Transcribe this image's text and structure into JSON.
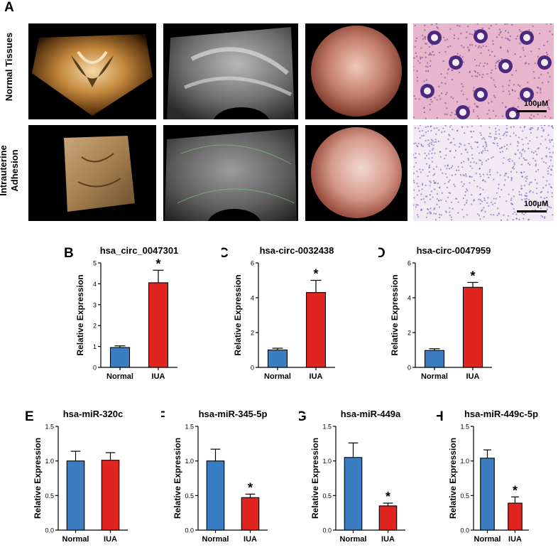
{
  "panel_a": {
    "letter": "A",
    "row_labels": [
      "Normal Tissues",
      "Intrauterine\nAdhesion"
    ],
    "scale_bar_label": "100μM"
  },
  "chart_data": [
    {
      "letter": "B",
      "type": "bar",
      "title": "hsa_circ_0047301",
      "ylabel": "Relative Expression",
      "categories": [
        "Normal",
        "IUA"
      ],
      "values": [
        0.95,
        4.05
      ],
      "errors": [
        0.08,
        0.6
      ],
      "ylim": [
        0,
        5
      ],
      "yticks": [
        "0",
        "1",
        "2",
        "3",
        "4",
        "5"
      ],
      "significance": [
        "",
        "*"
      ],
      "colors": [
        "#3a7dc0",
        "#e02420"
      ]
    },
    {
      "letter": "C",
      "type": "bar",
      "title": "hsa-circ-0032438",
      "ylabel": "Relative Expression",
      "categories": [
        "Normal",
        "IUA"
      ],
      "values": [
        1.0,
        4.3
      ],
      "errors": [
        0.1,
        0.7
      ],
      "ylim": [
        0,
        6
      ],
      "yticks": [
        "0",
        "2",
        "4",
        "6"
      ],
      "significance": [
        "",
        "*"
      ],
      "colors": [
        "#3a7dc0",
        "#e02420"
      ]
    },
    {
      "letter": "D",
      "type": "bar",
      "title": "hsa-circ-0047959",
      "ylabel": "Relative Expression",
      "categories": [
        "Normal",
        "IUA"
      ],
      "values": [
        0.97,
        4.6
      ],
      "errors": [
        0.1,
        0.28
      ],
      "ylim": [
        0,
        6
      ],
      "yticks": [
        "0",
        "2",
        "4",
        "6"
      ],
      "significance": [
        "",
        "*"
      ],
      "colors": [
        "#3a7dc0",
        "#e02420"
      ]
    },
    {
      "letter": "E",
      "type": "bar",
      "title": "hsa-miR-320c",
      "ylabel": "Relative Expression",
      "categories": [
        "Normal",
        "IUA"
      ],
      "values": [
        1.0,
        1.01
      ],
      "errors": [
        0.14,
        0.11
      ],
      "ylim": [
        0,
        1.5
      ],
      "yticks": [
        "0.0",
        "0.5",
        "1.0",
        "1.5"
      ],
      "significance": [
        "",
        ""
      ],
      "colors": [
        "#3a7dc0",
        "#e02420"
      ]
    },
    {
      "letter": "F",
      "type": "bar",
      "title": "hsa-miR-345-5p",
      "ylabel": "Relative Expression",
      "categories": [
        "Normal",
        "IUA"
      ],
      "values": [
        1.0,
        0.47
      ],
      "errors": [
        0.17,
        0.05
      ],
      "ylim": [
        0,
        1.5
      ],
      "yticks": [
        "0.0",
        "0.5",
        "1.0",
        "1.5"
      ],
      "significance": [
        "",
        "*"
      ],
      "colors": [
        "#3a7dc0",
        "#e02420"
      ]
    },
    {
      "letter": "G",
      "type": "bar",
      "title": "hsa-miR-449a",
      "ylabel": "Relative Expression",
      "categories": [
        "Normal",
        "IUA"
      ],
      "values": [
        1.05,
        0.35
      ],
      "errors": [
        0.21,
        0.04
      ],
      "ylim": [
        0,
        1.5
      ],
      "yticks": [
        "0.0",
        "0.5",
        "1.0",
        "1.5"
      ],
      "significance": [
        "",
        "*"
      ],
      "colors": [
        "#3a7dc0",
        "#e02420"
      ]
    },
    {
      "letter": "H",
      "type": "bar",
      "title": "hsa-miR-449c-5p",
      "ylabel": "Relative Expression",
      "categories": [
        "Normal",
        "IUA"
      ],
      "values": [
        1.04,
        0.39
      ],
      "errors": [
        0.12,
        0.09
      ],
      "ylim": [
        0,
        1.5
      ],
      "yticks": [
        "0.0",
        "0.5",
        "1.0",
        "1.5"
      ],
      "significance": [
        "",
        "*"
      ],
      "colors": [
        "#3a7dc0",
        "#e02420"
      ]
    }
  ]
}
